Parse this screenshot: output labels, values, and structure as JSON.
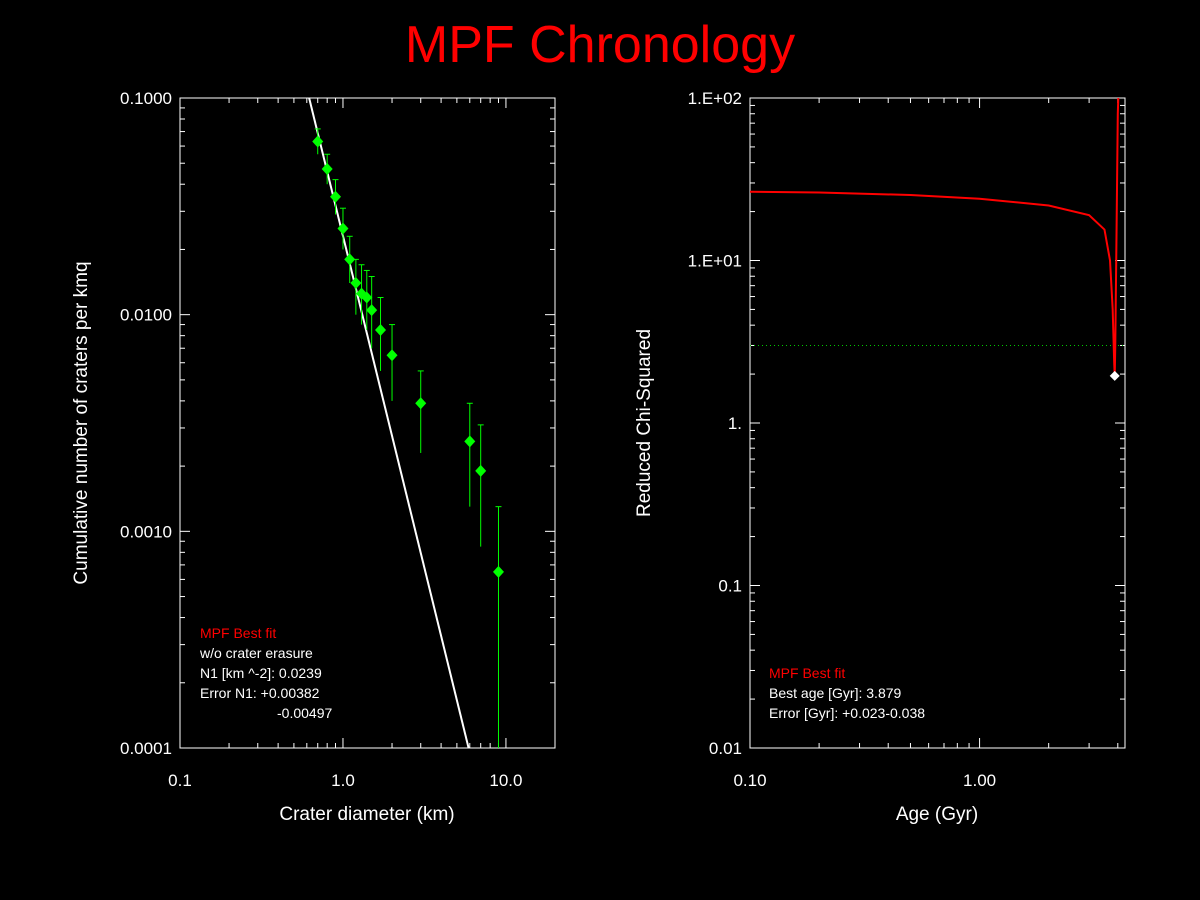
{
  "title": "MPF Chronology",
  "colors": {
    "background": "#000000",
    "title": "#ff0000",
    "axes": "#ffffff",
    "points": "#00ff00",
    "fit_line": "#ffffff",
    "chi_curve": "#ff0000",
    "threshold_line": "#00cc00"
  },
  "chart_data": [
    {
      "type": "scatter",
      "xlabel": "Crater diameter (km)",
      "ylabel": "Cumulative number of craters per kmq",
      "xscale": "log",
      "yscale": "log",
      "xlim": [
        0.1,
        20
      ],
      "ylim": [
        0.0001,
        0.1
      ],
      "xticks": [
        {
          "v": 0.1,
          "label": "0.1"
        },
        {
          "v": 1,
          "label": "1.0"
        },
        {
          "v": 10,
          "label": "10.0"
        }
      ],
      "yticks": [
        {
          "v": 0.1,
          "label": "0.1000"
        },
        {
          "v": 0.01,
          "label": "0.0100"
        },
        {
          "v": 0.001,
          "label": "0.0010"
        },
        {
          "v": 0.0001,
          "label": "0.0001"
        }
      ],
      "series": [
        {
          "kind": "points_with_error",
          "marker": "diamond",
          "points": [
            {
              "x": 0.7,
              "y": 0.063,
              "lo": 0.055,
              "hi": 0.072
            },
            {
              "x": 0.8,
              "y": 0.047,
              "lo": 0.04,
              "hi": 0.055
            },
            {
              "x": 0.9,
              "y": 0.035,
              "lo": 0.029,
              "hi": 0.042
            },
            {
              "x": 1.0,
              "y": 0.025,
              "lo": 0.02,
              "hi": 0.031
            },
            {
              "x": 1.1,
              "y": 0.018,
              "lo": 0.014,
              "hi": 0.023
            },
            {
              "x": 1.2,
              "y": 0.014,
              "lo": 0.01,
              "hi": 0.018
            },
            {
              "x": 1.3,
              "y": 0.0125,
              "lo": 0.009,
              "hi": 0.017
            },
            {
              "x": 1.4,
              "y": 0.012,
              "lo": 0.0085,
              "hi": 0.016
            },
            {
              "x": 1.5,
              "y": 0.0105,
              "lo": 0.007,
              "hi": 0.015
            },
            {
              "x": 1.7,
              "y": 0.0085,
              "lo": 0.0055,
              "hi": 0.012
            },
            {
              "x": 2.0,
              "y": 0.0065,
              "lo": 0.004,
              "hi": 0.009
            },
            {
              "x": 3.0,
              "y": 0.0039,
              "lo": 0.0023,
              "hi": 0.0055
            },
            {
              "x": 6.0,
              "y": 0.0026,
              "lo": 0.0013,
              "hi": 0.0039
            },
            {
              "x": 7.0,
              "y": 0.0019,
              "lo": 0.00085,
              "hi": 0.0031
            },
            {
              "x": 9.0,
              "y": 0.00065,
              "lo": 0.0001,
              "hi": 0.0013
            }
          ]
        },
        {
          "kind": "line",
          "points": [
            {
              "x": 0.62,
              "y": 0.1
            },
            {
              "x": 5.9,
              "y": 0.0001
            }
          ]
        }
      ],
      "annotations": [
        {
          "text": "MPF Best fit",
          "color": "#ff0000"
        },
        {
          "text": "w/o crater erasure",
          "color": "#ffffff"
        },
        {
          "text": "N1 [km ^-2]: 0.0239",
          "color": "#ffffff"
        },
        {
          "text": "Error N1: +0.00382",
          "color": "#ffffff"
        },
        {
          "text": "-0.00497",
          "color": "#ffffff"
        }
      ]
    },
    {
      "type": "line",
      "xlabel": "Age (Gyr)",
      "ylabel": "Reduced Chi-Squared",
      "xscale": "log",
      "yscale": "log",
      "xlim": [
        0.1,
        4.3
      ],
      "ylim": [
        0.01,
        100
      ],
      "xticks": [
        {
          "v": 0.1,
          "label": "0.10"
        },
        {
          "v": 1,
          "label": "1.00"
        }
      ],
      "yticks": [
        {
          "v": 100,
          "label": "1.E+02"
        },
        {
          "v": 10,
          "label": "1.E+01"
        },
        {
          "v": 1,
          "label": "1."
        },
        {
          "v": 0.1,
          "label": "0.1"
        },
        {
          "v": 0.01,
          "label": "0.01"
        }
      ],
      "series": [
        {
          "kind": "curve",
          "points": [
            {
              "x": 0.1,
              "y": 26.5
            },
            {
              "x": 0.2,
              "y": 26.2
            },
            {
              "x": 0.5,
              "y": 25.3
            },
            {
              "x": 1.0,
              "y": 24.0
            },
            {
              "x": 2.0,
              "y": 21.8
            },
            {
              "x": 3.0,
              "y": 19.0
            },
            {
              "x": 3.5,
              "y": 15.5
            },
            {
              "x": 3.7,
              "y": 10.0
            },
            {
              "x": 3.8,
              "y": 5.0
            },
            {
              "x": 3.86,
              "y": 2.3
            },
            {
              "x": 3.879,
              "y": 1.95
            },
            {
              "x": 3.9,
              "y": 3.0
            },
            {
              "x": 3.95,
              "y": 15.0
            },
            {
              "x": 4.0,
              "y": 80.0
            },
            {
              "x": 4.02,
              "y": 100.0
            }
          ]
        },
        {
          "kind": "hline",
          "y": 3.0
        },
        {
          "kind": "marker",
          "x": 3.879,
          "y": 1.95
        }
      ],
      "annotations": [
        {
          "text": "MPF Best fit",
          "color": "#ff0000"
        },
        {
          "text": "Best age [Gyr]: 3.879",
          "color": "#ffffff"
        },
        {
          "text": "Error [Gyr]: +0.023-0.038",
          "color": "#ffffff"
        }
      ]
    }
  ]
}
